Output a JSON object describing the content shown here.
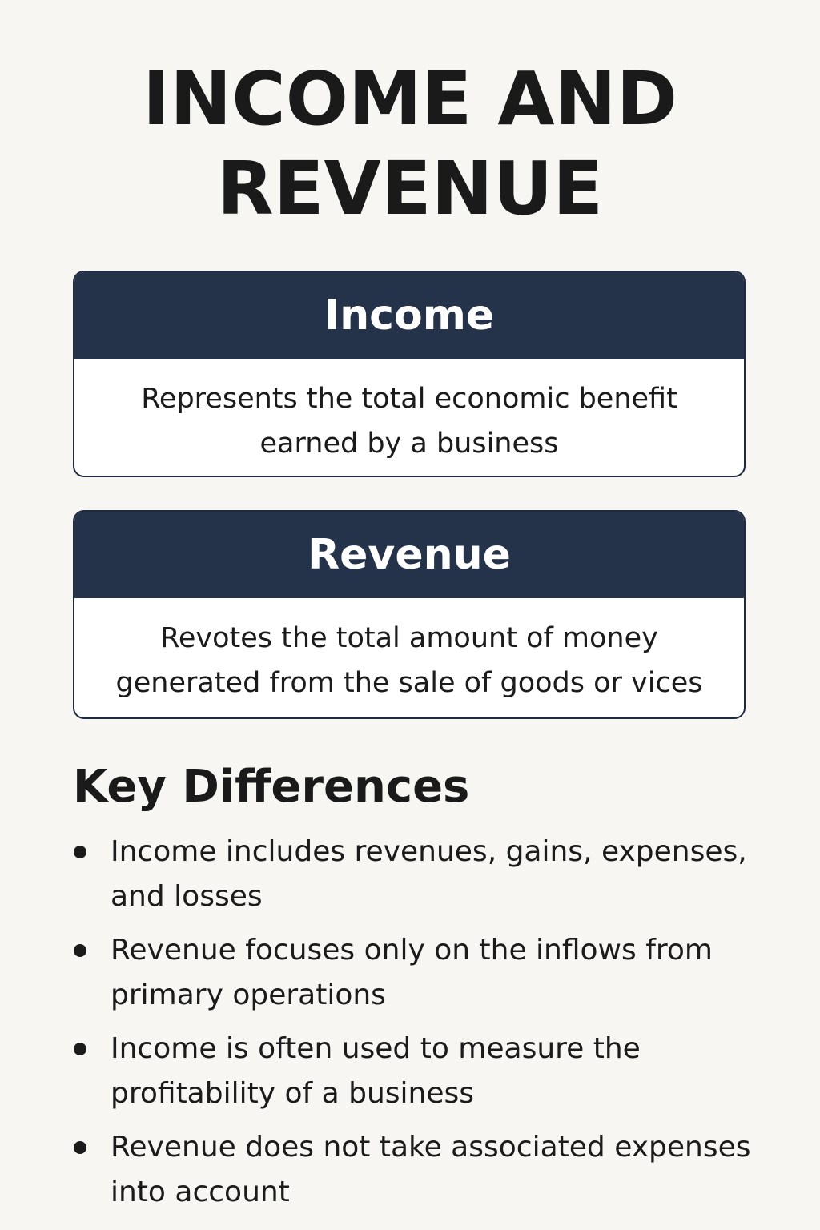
{
  "title": {
    "line1": "INCOME AND",
    "line2": "REVENUE"
  },
  "cards": [
    {
      "heading": "Income",
      "body": "Represents the total economic benefit earned by a business"
    },
    {
      "heading": "Revenue",
      "body": "Revotes the total amount of money generated from the sale of goods or vices"
    }
  ],
  "key_differences": {
    "heading": "Key Differences",
    "items": [
      "Income includes revenues, gains, expenses, and losses",
      "Revenue focuses only on the inflows from primary operations",
      "Income is often used to measure the profitability of a business",
      "Revenue does not take associated expenses into account"
    ]
  }
}
